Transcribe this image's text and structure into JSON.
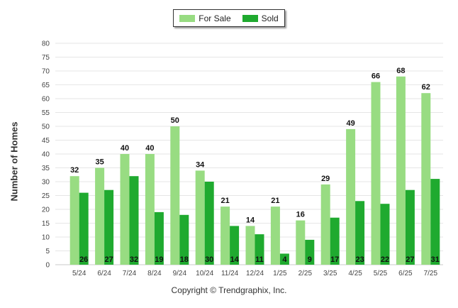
{
  "chart_data": {
    "type": "bar",
    "title": "",
    "xlabel": "",
    "ylabel": "Number of Homes",
    "ylim": [
      0,
      80
    ],
    "ytick_step": 5,
    "grid": true,
    "legend_position": "top-center",
    "categories": [
      "5/24",
      "6/24",
      "7/24",
      "8/24",
      "9/24",
      "10/24",
      "11/24",
      "12/24",
      "1/25",
      "2/25",
      "3/25",
      "4/25",
      "5/25",
      "6/25",
      "7/25"
    ],
    "series": [
      {
        "name": "For Sale",
        "color": "#98dc82",
        "label_position": "top",
        "values": [
          32,
          35,
          40,
          40,
          50,
          34,
          21,
          14,
          21,
          16,
          29,
          49,
          66,
          68,
          62
        ]
      },
      {
        "name": "Sold",
        "color": "#1faa2f",
        "label_position": "bottom",
        "values": [
          26,
          27,
          32,
          19,
          18,
          30,
          14,
          11,
          4,
          9,
          17,
          23,
          22,
          27,
          31
        ]
      }
    ],
    "footer": "Copyright © Trendgraphix, Inc."
  }
}
